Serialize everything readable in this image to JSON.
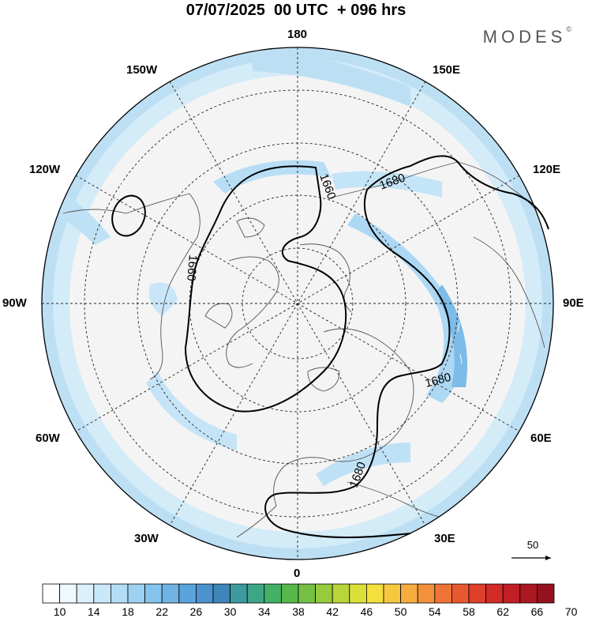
{
  "title": "07/07/2025  00 UTC  + 096 hrs",
  "brand": "MODES",
  "brand_mark": "©",
  "longitude_labels": {
    "top": "180",
    "bottom": "0",
    "left": "90W",
    "right": "90E",
    "upper_left": "150W",
    "upper_right": "150E",
    "left_upper": "120W",
    "right_upper": "120E",
    "left_lower": "60W",
    "right_lower": "60E",
    "lower_left": "30W",
    "lower_right": "30E"
  },
  "contour_labels": [
    "1660",
    "1680",
    "1660",
    "1680",
    "1680"
  ],
  "vector_reference": {
    "label": "50",
    "icon": "arrow-right-icon"
  },
  "colorbar": {
    "tick_labels": [
      "10",
      "14",
      "18",
      "22",
      "26",
      "30",
      "34",
      "38",
      "42",
      "46",
      "50",
      "54",
      "58",
      "62",
      "66",
      "70"
    ],
    "colors": [
      "#ffffff",
      "#eef8fd",
      "#dcf0fb",
      "#c8e7f8",
      "#b3ddf5",
      "#9cd1f1",
      "#85c4ec",
      "#6fb4e4",
      "#5aa3dc",
      "#4b92cf",
      "#3f86b8",
      "#3f9aa0",
      "#3ea687",
      "#43b066",
      "#56b74b",
      "#76c044",
      "#98ca3e",
      "#bad53a",
      "#dcdf38",
      "#f4e03c",
      "#f6c83f",
      "#f5ad3f",
      "#f2903b",
      "#ee7436",
      "#e85931",
      "#de402c",
      "#d12c28",
      "#bf1f25",
      "#ab1822",
      "#94121e"
    ]
  }
}
